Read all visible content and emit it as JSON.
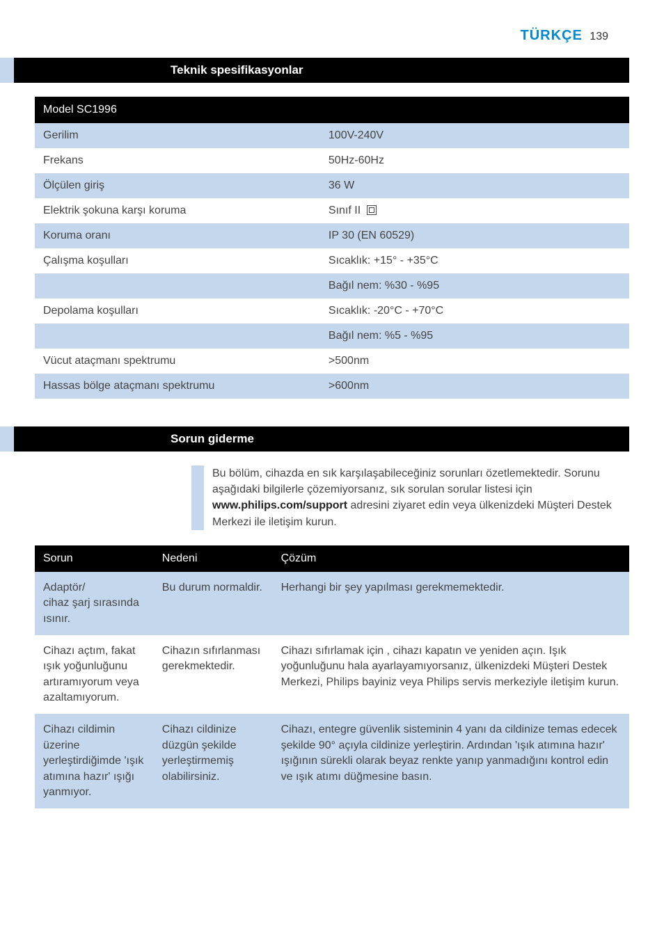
{
  "header": {
    "language": "TÜRKÇE",
    "language_color": "#0089d0",
    "page_number": "139"
  },
  "section1": {
    "title": "Teknik spesifikasyonlar",
    "table_header": "Model SC1996",
    "rows": [
      {
        "label": "Gerilim",
        "value": "100V-240V",
        "tone": "odd"
      },
      {
        "label": "Frekans",
        "value": "50Hz-60Hz",
        "tone": "even"
      },
      {
        "label": "Ölçülen giriş",
        "value": "36 W",
        "tone": "odd"
      },
      {
        "label": "Elektrik şokuna karşı koruma",
        "value": "Sınıf II",
        "tone": "even",
        "class_icon": true
      },
      {
        "label": "Koruma oranı",
        "value": "IP 30 (EN 60529)",
        "tone": "odd"
      },
      {
        "label": "Çalışma koşulları",
        "value": "Sıcaklık: +15° - +35°C",
        "tone": "even"
      },
      {
        "label": "",
        "value": "Bağıl nem: %30 - %95",
        "tone": "odd"
      },
      {
        "label": "Depolama koşulları",
        "value": "Sıcaklık: -20°C - +70°C",
        "tone": "even"
      },
      {
        "label": "",
        "value": "Bağıl nem: %5 - %95",
        "tone": "odd"
      },
      {
        "label": "Vücut ataçmanı spektrumu",
        "value": ">500nm",
        "tone": "even"
      },
      {
        "label": "Hassas bölge ataçmanı spektrumu",
        "value": ">600nm",
        "tone": "odd"
      }
    ]
  },
  "section2": {
    "title": "Sorun giderme",
    "intro_1": "Bu bölüm, cihazda en sık karşılaşabileceğiniz sorunları özetlemektedir. Sorunu aşağıdaki bilgilerle çözemiyorsanız, sık sorulan sorular listesi için ",
    "intro_bold": "www.philips.com/support",
    "intro_2": " adresini ziyaret edin veya ülkenizdeki Müşteri Destek Merkezi ile iletişim kurun.",
    "headers": {
      "problem": "Sorun",
      "cause": "Nedeni",
      "solution": "Çözüm"
    },
    "rows": [
      {
        "tone": "odd",
        "problem": "Adaptör/\ncihaz şarj sırasında ısınır.",
        "cause": "Bu durum normaldir.",
        "solution": "Herhangi bir şey yapılması gerekmemektedir."
      },
      {
        "tone": "even",
        "problem": "Cihazı açtım, fakat ışık yoğunluğunu artıramıyorum veya azaltamıyorum.",
        "cause": "Cihazın sıfırlanması gerekmektedir.",
        "solution": "Cihazı sıfırlamak için , cihazı kapatın ve yeniden açın. Işık yoğunluğunu hala ayarlayamıyorsanız, ülkenizdeki Müşteri Destek Merkezi, Philips bayiniz veya Philips servis merkeziyle iletişim kurun."
      },
      {
        "tone": "odd",
        "problem": "Cihazı cildimin üzerine yerleştirdiğimde 'ışık atımına hazır' ışığı yanmıyor.",
        "cause": "Cihazı cildinize düzgün şekilde yerleştirmemiş olabilirsiniz.",
        "solution": "Cihazı, entegre güvenlik sisteminin 4 yanı da cildinize temas edecek şekilde 90° açıyla cildinize yerleştirin. Ardından 'ışık atımına hazır' ışığının sürekli olarak beyaz renkte yanıp yanmadığını kontrol edin ve ışık atımı düğmesine basın."
      }
    ]
  },
  "colors": {
    "accent_blue": "#c4d7ed",
    "brand_blue": "#0089d0",
    "black": "#000000",
    "white": "#ffffff",
    "text": "#444444"
  }
}
